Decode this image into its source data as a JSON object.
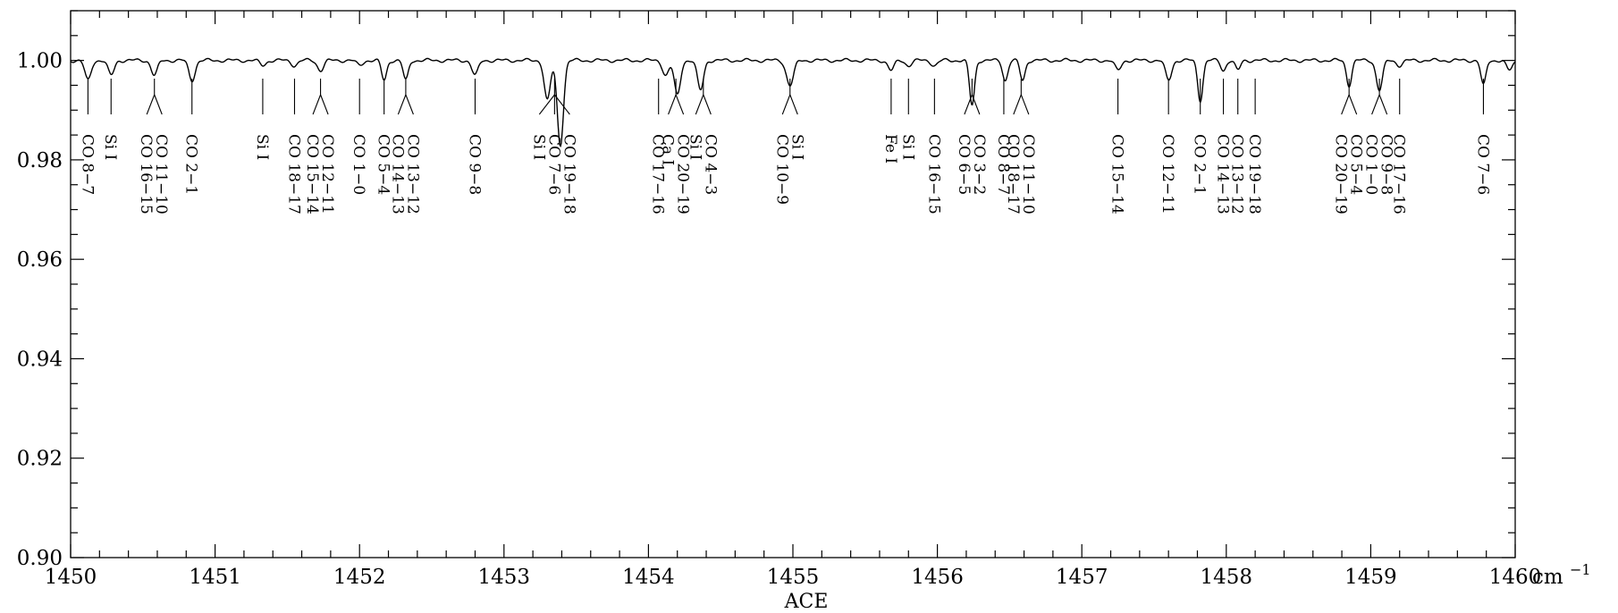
{
  "chart_data": {
    "type": "line",
    "title": "",
    "xlabel": "ACE",
    "ylabel": "",
    "xlim": [
      1450,
      1460
    ],
    "ylim": [
      0.9,
      1.01
    ],
    "x_unit": "cm",
    "x_unit_exponent": "−1",
    "x_ticks": [
      1450,
      1451,
      1452,
      1453,
      1454,
      1455,
      1456,
      1457,
      1458,
      1459
    ],
    "x_tick_labels": [
      "1450",
      "1451",
      "1452",
      "1453",
      "1454",
      "1455",
      "1456",
      "1457",
      "1458",
      "1459",
      "1460"
    ],
    "y_ticks": [
      0.9,
      0.92,
      0.94,
      0.96,
      0.98,
      1.0
    ],
    "y_tick_labels": [
      "0.90",
      "0.92",
      "0.94",
      "0.96",
      "0.98",
      "1.00"
    ],
    "continuum": 1.0,
    "absorption_lines": [
      {
        "x": 1450.12,
        "depth": 0.004,
        "width": 0.03
      },
      {
        "x": 1450.28,
        "depth": 0.003,
        "width": 0.03
      },
      {
        "x": 1450.58,
        "depth": 0.003,
        "width": 0.03
      },
      {
        "x": 1450.84,
        "depth": 0.004,
        "width": 0.03
      },
      {
        "x": 1451.33,
        "depth": 0.001,
        "width": 0.03
      },
      {
        "x": 1451.55,
        "depth": 0.001,
        "width": 0.03
      },
      {
        "x": 1451.73,
        "depth": 0.002,
        "width": 0.03
      },
      {
        "x": 1452.0,
        "depth": 0.001,
        "width": 0.03
      },
      {
        "x": 1452.17,
        "depth": 0.004,
        "width": 0.025
      },
      {
        "x": 1452.32,
        "depth": 0.004,
        "width": 0.025
      },
      {
        "x": 1452.8,
        "depth": 0.003,
        "width": 0.03
      },
      {
        "x": 1453.3,
        "depth": 0.008,
        "width": 0.03
      },
      {
        "x": 1453.39,
        "depth": 0.017,
        "width": 0.03
      },
      {
        "x": 1454.12,
        "depth": 0.003,
        "width": 0.03
      },
      {
        "x": 1454.2,
        "depth": 0.007,
        "width": 0.03
      },
      {
        "x": 1454.36,
        "depth": 0.006,
        "width": 0.03
      },
      {
        "x": 1454.98,
        "depth": 0.005,
        "width": 0.035
      },
      {
        "x": 1455.68,
        "depth": 0.002,
        "width": 0.03
      },
      {
        "x": 1455.8,
        "depth": 0.001,
        "width": 0.03
      },
      {
        "x": 1455.98,
        "depth": 0.001,
        "width": 0.03
      },
      {
        "x": 1456.24,
        "depth": 0.009,
        "width": 0.025
      },
      {
        "x": 1456.47,
        "depth": 0.004,
        "width": 0.025
      },
      {
        "x": 1456.59,
        "depth": 0.004,
        "width": 0.025
      },
      {
        "x": 1457.25,
        "depth": 0.002,
        "width": 0.03
      },
      {
        "x": 1457.6,
        "depth": 0.004,
        "width": 0.03
      },
      {
        "x": 1457.82,
        "depth": 0.008,
        "width": 0.025
      },
      {
        "x": 1457.98,
        "depth": 0.002,
        "width": 0.025
      },
      {
        "x": 1458.08,
        "depth": 0.002,
        "width": 0.025
      },
      {
        "x": 1458.85,
        "depth": 0.005,
        "width": 0.025
      },
      {
        "x": 1459.06,
        "depth": 0.006,
        "width": 0.03
      },
      {
        "x": 1459.2,
        "depth": 0.001,
        "width": 0.03
      },
      {
        "x": 1459.78,
        "depth": 0.005,
        "width": 0.025
      },
      {
        "x": 1459.96,
        "depth": 0.002,
        "width": 0.03
      }
    ],
    "line_ids": [
      {
        "x": 1450.12,
        "labels": [
          "CO 8−7"
        ]
      },
      {
        "x": 1450.28,
        "labels": [
          "Si I"
        ]
      },
      {
        "x": 1450.58,
        "labels": [
          "CO 16−15",
          "CO 11−10"
        ]
      },
      {
        "x": 1450.84,
        "labels": [
          "CO 2−1"
        ]
      },
      {
        "x": 1451.33,
        "labels": [
          "Si I"
        ]
      },
      {
        "x": 1451.55,
        "labels": [
          "CO 18−17"
        ]
      },
      {
        "x": 1451.73,
        "labels": [
          "CO 15−14",
          "CO 12−11"
        ]
      },
      {
        "x": 1452.0,
        "labels": [
          "CO 1−0"
        ]
      },
      {
        "x": 1452.17,
        "labels": [
          "CO 5−4"
        ]
      },
      {
        "x": 1452.32,
        "labels": [
          "CO 14−13",
          "CO 13−12"
        ]
      },
      {
        "x": 1452.8,
        "labels": [
          "CO 9−8"
        ]
      },
      {
        "x": 1453.35,
        "labels": [
          "Si I",
          "CO 7−6",
          "CO 19−18"
        ]
      },
      {
        "x": 1454.07,
        "labels": [
          "CO 17−16"
        ]
      },
      {
        "x": 1454.19,
        "labels": [
          "Ca I",
          "CO 20−19"
        ]
      },
      {
        "x": 1454.38,
        "labels": [
          "Si I",
          "CO 4−3"
        ]
      },
      {
        "x": 1454.98,
        "labels": [
          "CO 10−9",
          "Si I"
        ]
      },
      {
        "x": 1455.68,
        "labels": [
          "Fe I"
        ]
      },
      {
        "x": 1455.8,
        "labels": [
          "Si I"
        ]
      },
      {
        "x": 1455.98,
        "labels": [
          "CO 16−15"
        ]
      },
      {
        "x": 1456.24,
        "labels": [
          "CO 6−5",
          "CO 3−2"
        ]
      },
      {
        "x": 1456.46,
        "labels": [
          "CO 8−7"
        ]
      },
      {
        "x": 1456.58,
        "labels": [
          "CO 18−17",
          "CO 11−10"
        ]
      },
      {
        "x": 1457.25,
        "labels": [
          "CO 15−14"
        ]
      },
      {
        "x": 1457.6,
        "labels": [
          "CO 12−11"
        ]
      },
      {
        "x": 1457.82,
        "labels": [
          "CO 2−1"
        ]
      },
      {
        "x": 1457.98,
        "labels": [
          "CO 14−13"
        ]
      },
      {
        "x": 1458.08,
        "labels": [
          "CO 13−12"
        ]
      },
      {
        "x": 1458.2,
        "labels": [
          "CO 19−18"
        ]
      },
      {
        "x": 1458.85,
        "labels": [
          "CO 20−19",
          "CO 5−4"
        ]
      },
      {
        "x": 1459.06,
        "labels": [
          "CO 1−0",
          "CO 9−8"
        ]
      },
      {
        "x": 1459.2,
        "labels": [
          "CO 17−16"
        ]
      },
      {
        "x": 1459.78,
        "labels": [
          "CO 7−6"
        ]
      }
    ],
    "grid": false,
    "legend": "none"
  }
}
